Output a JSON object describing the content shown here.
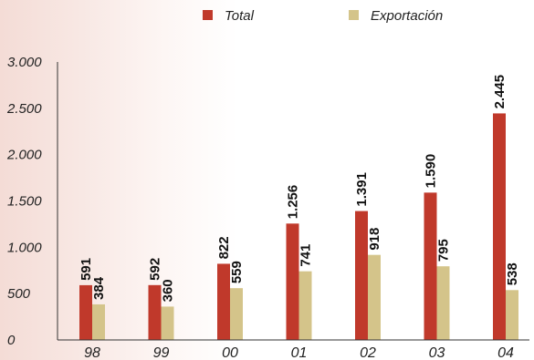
{
  "chart_data": {
    "type": "bar",
    "categories": [
      "98",
      "99",
      "00",
      "01",
      "02",
      "03",
      "04"
    ],
    "series": [
      {
        "name": "Total",
        "color": "#c0392b",
        "values": [
          591,
          592,
          822,
          1256,
          1391,
          1590,
          2445
        ],
        "labels": [
          "591",
          "592",
          "822",
          "1.256",
          "1.391",
          "1.590",
          "2.445"
        ]
      },
      {
        "name": "Exportación",
        "color": "#d4c48a",
        "values": [
          384,
          360,
          559,
          741,
          918,
          795,
          538
        ],
        "labels": [
          "384",
          "360",
          "559",
          "741",
          "918",
          "795",
          "538"
        ]
      }
    ],
    "ylim": [
      0,
      3000
    ],
    "yticks": [
      0,
      500,
      1000,
      1500,
      2000,
      2500,
      3000
    ],
    "ytick_labels": [
      "0",
      "500",
      "1.000",
      "1.500",
      "2.000",
      "2.500",
      "3.000"
    ],
    "grid": false,
    "legend_position": "top"
  }
}
